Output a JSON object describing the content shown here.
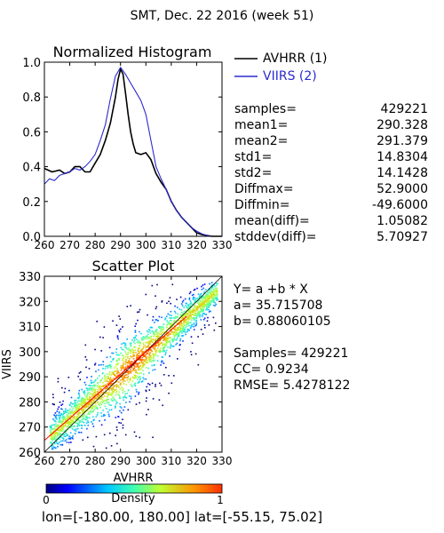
{
  "page_title": "SMT,  Dec. 22 2016 (week 51)",
  "colors": {
    "avhrr": "#000000",
    "viirs": "#2a2ad0",
    "fit_line": "#ff0000",
    "axis": "#000000"
  },
  "chart_data": [
    {
      "type": "line",
      "title": "Normalized Histogram",
      "xlim": [
        260,
        330
      ],
      "ylim": [
        0.0,
        1.0
      ],
      "x_tick_labels": [
        "260",
        "270",
        "280",
        "290",
        "300",
        "310",
        "320",
        "330"
      ],
      "y_tick_labels": [
        "0.0",
        "0.2",
        "0.4",
        "0.6",
        "0.8",
        "1.0"
      ],
      "legend_position": "top-right",
      "series": [
        {
          "name": "AVHRR (1)",
          "x": [
            260,
            263,
            266,
            268,
            270,
            272,
            274,
            276,
            278,
            280,
            282,
            284,
            286,
            288,
            289,
            290,
            291,
            292,
            293,
            294,
            295,
            296,
            298,
            300,
            302,
            304,
            306,
            308,
            310,
            312,
            314,
            316,
            318,
            320,
            322,
            324,
            326,
            328,
            330
          ],
          "y": [
            0.39,
            0.37,
            0.38,
            0.36,
            0.37,
            0.4,
            0.4,
            0.37,
            0.37,
            0.42,
            0.47,
            0.55,
            0.65,
            0.8,
            0.9,
            0.96,
            0.93,
            0.82,
            0.7,
            0.6,
            0.53,
            0.48,
            0.47,
            0.48,
            0.44,
            0.36,
            0.31,
            0.27,
            0.2,
            0.15,
            0.11,
            0.08,
            0.05,
            0.02,
            0.01,
            0.005,
            0.0,
            0.0,
            0.0
          ]
        },
        {
          "name": "VIIRS (2)",
          "x": [
            260,
            262,
            264,
            266,
            268,
            270,
            272,
            274,
            276,
            278,
            280,
            282,
            284,
            286,
            288,
            290,
            292,
            294,
            296,
            298,
            300,
            302,
            304,
            306,
            308,
            310,
            312,
            314,
            316,
            318,
            320,
            322,
            324,
            326,
            328,
            330
          ],
          "y": [
            0.3,
            0.33,
            0.32,
            0.35,
            0.36,
            0.37,
            0.39,
            0.38,
            0.4,
            0.43,
            0.47,
            0.55,
            0.64,
            0.79,
            0.92,
            0.97,
            0.93,
            0.88,
            0.83,
            0.78,
            0.7,
            0.55,
            0.4,
            0.33,
            0.27,
            0.2,
            0.15,
            0.11,
            0.08,
            0.05,
            0.03,
            0.015,
            0.005,
            0.0,
            0.0,
            0.0
          ]
        }
      ]
    },
    {
      "type": "scatter",
      "title": "Scatter Plot",
      "xlabel": "AVHRR",
      "ylabel": "VIIRS",
      "xlim": [
        260,
        330
      ],
      "ylim": [
        260,
        330
      ],
      "x_tick_labels": [
        "260",
        "270",
        "280",
        "290",
        "300",
        "310",
        "320",
        "330"
      ],
      "y_tick_labels": [
        "260",
        "270",
        "280",
        "290",
        "300",
        "310",
        "320",
        "330"
      ],
      "fit_line": {
        "a": 35.715708,
        "b": 0.88060105,
        "x_range": [
          260,
          316
        ]
      },
      "colorbar": {
        "label": "Density",
        "min_label": "0",
        "max_label": "1"
      }
    }
  ],
  "stats": [
    {
      "label": "samples=",
      "value": "429221"
    },
    {
      "label": "mean1=",
      "value": "290.328"
    },
    {
      "label": "mean2=",
      "value": "291.379"
    },
    {
      "label": "std1=",
      "value": "14.8304"
    },
    {
      "label": "std2=",
      "value": "14.1428"
    },
    {
      "label": "Diffmax=",
      "value": "52.9000"
    },
    {
      "label": "Diffmin=",
      "value": "-49.6000"
    },
    {
      "label": "mean(diff)=",
      "value": "1.05082"
    },
    {
      "label": "stddev(diff)=",
      "value": "5.70927"
    }
  ],
  "regression": {
    "equation": "Y= a +b * X",
    "a_text": "a= 35.715708",
    "b_text": "b= 0.88060105",
    "samples_text": "Samples= 429221",
    "cc_text": "CC=  0.9234",
    "rmse_text": "RMSE= 5.4278122"
  },
  "footer": {
    "range_text": "lon=[-180.00, 180.00] lat=[-55.15, 75.02]"
  }
}
